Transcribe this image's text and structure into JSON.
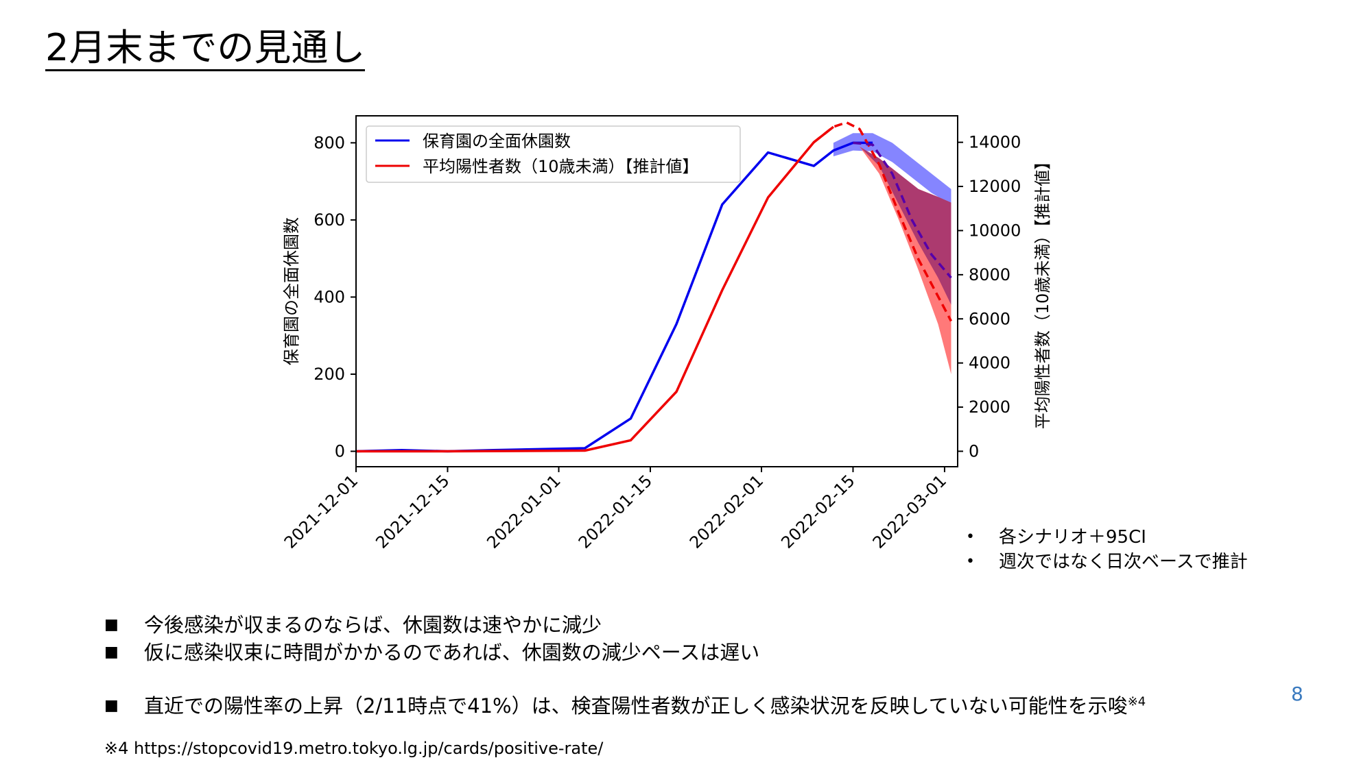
{
  "slide": {
    "title": "2月末までの見通し",
    "page_number": "8",
    "notes": [
      "各シナリオ＋95CI",
      "週次ではなく日次ベースで推計"
    ],
    "bullets": [
      {
        "text": "今後感染が収まるのならば、休園数は速やかに減少",
        "sup": ""
      },
      {
        "text": "仮に感染収束に時間がかかるのであれば、休園数の減少ペースは遅い",
        "sup": ""
      },
      {
        "text": "直近での陽性率の上昇（2/11時点で41%）は、検査陽性者数が正しく感染状況を反映していない可能性を示唆",
        "sup": "※4"
      }
    ],
    "footnote": "※4 https://stopcovid19.metro.tokyo.lg.jp/cards/positive-rate/"
  },
  "chart_data": {
    "type": "line",
    "x_range": [
      "2021-12-01",
      "2022-03-03"
    ],
    "x_ticks": [
      "2021-12-01",
      "2021-12-15",
      "2022-01-01",
      "2022-01-15",
      "2022-02-01",
      "2022-02-15",
      "2022-03-01"
    ],
    "y_left": {
      "label": "保育園の全面休園数",
      "range": [
        -40,
        870
      ],
      "ticks": [
        0,
        200,
        400,
        600,
        800
      ]
    },
    "y_right": {
      "label": "平均陽性者数（10歳未満）【推計値】",
      "range": [
        -700,
        15200
      ],
      "ticks": [
        0,
        2000,
        4000,
        6000,
        8000,
        10000,
        12000,
        14000
      ]
    },
    "legend_position": "top-left",
    "series": [
      {
        "name": "保育園の全面休園数",
        "axis": "left",
        "color": "#0000ee",
        "points": [
          [
            "2021-12-01",
            0
          ],
          [
            "2021-12-08",
            3
          ],
          [
            "2021-12-15",
            0
          ],
          [
            "2021-12-22",
            3
          ],
          [
            "2022-01-05",
            8
          ],
          [
            "2022-01-12",
            85
          ],
          [
            "2022-01-19",
            330
          ],
          [
            "2022-01-26",
            640
          ],
          [
            "2022-02-02",
            775
          ],
          [
            "2022-02-09",
            740
          ],
          [
            "2022-02-12",
            780
          ],
          [
            "2022-02-15",
            800
          ],
          [
            "2022-02-18",
            800
          ]
        ]
      },
      {
        "name": "平均陽性者数（10歳未満）【推計値】",
        "axis": "right",
        "color": "#ee0000",
        "points": [
          [
            "2021-12-01",
            0
          ],
          [
            "2021-12-15",
            0
          ],
          [
            "2022-01-05",
            30
          ],
          [
            "2022-01-12",
            500
          ],
          [
            "2022-01-19",
            2700
          ],
          [
            "2022-01-26",
            7300
          ],
          [
            "2022-02-02",
            11500
          ],
          [
            "2022-02-09",
            14000
          ],
          [
            "2022-02-12",
            14700
          ]
        ]
      },
      {
        "name": "",
        "axis": "right",
        "color": "#ee0000",
        "style": "dashed",
        "points": [
          [
            "2022-02-09",
            14000
          ],
          [
            "2022-02-12",
            14700
          ],
          [
            "2022-02-14",
            14900
          ],
          [
            "2022-02-16",
            14600
          ],
          [
            "2022-02-19",
            13000
          ],
          [
            "2022-02-22",
            10800
          ],
          [
            "2022-02-25",
            8700
          ],
          [
            "2022-03-02",
            5900
          ]
        ]
      },
      {
        "name": "",
        "axis": "left",
        "color": "#5500aa",
        "style": "dashed",
        "points": [
          [
            "2022-02-15",
            800
          ],
          [
            "2022-02-18",
            795
          ],
          [
            "2022-02-21",
            720
          ],
          [
            "2022-02-24",
            600
          ],
          [
            "2022-02-27",
            510
          ],
          [
            "2022-03-02",
            450
          ]
        ]
      }
    ],
    "bands": [
      {
        "axis": "left",
        "color": "#6666ff",
        "opacity": 0.8,
        "upper": [
          [
            "2022-02-12",
            800
          ],
          [
            "2022-02-15",
            825
          ],
          [
            "2022-02-18",
            825
          ],
          [
            "2022-02-21",
            800
          ],
          [
            "2022-02-24",
            760
          ],
          [
            "2022-02-27",
            720
          ],
          [
            "2022-03-02",
            680
          ]
        ],
        "lower": [
          [
            "2022-02-12",
            765
          ],
          [
            "2022-02-15",
            780
          ],
          [
            "2022-02-18",
            778
          ],
          [
            "2022-02-21",
            750
          ],
          [
            "2022-02-24",
            710
          ],
          [
            "2022-02-27",
            670
          ],
          [
            "2022-03-02",
            640
          ]
        ]
      },
      {
        "axis": "left",
        "color": "#ff6a6a",
        "opacity": 0.9,
        "upper": [
          [
            "2022-02-16",
            790
          ],
          [
            "2022-02-19",
            760
          ],
          [
            "2022-02-22",
            720
          ],
          [
            "2022-02-25",
            680
          ],
          [
            "2022-02-28",
            660
          ],
          [
            "2022-03-02",
            645
          ]
        ],
        "lower": [
          [
            "2022-02-16",
            790
          ],
          [
            "2022-02-19",
            720
          ],
          [
            "2022-02-22",
            600
          ],
          [
            "2022-02-25",
            470
          ],
          [
            "2022-02-28",
            330
          ],
          [
            "2022-03-02",
            200
          ]
        ]
      },
      {
        "axis": "left",
        "color": "#a3336e",
        "opacity": 0.9,
        "upper": [
          [
            "2022-02-16",
            790
          ],
          [
            "2022-02-19",
            760
          ],
          [
            "2022-02-22",
            720
          ],
          [
            "2022-02-25",
            680
          ],
          [
            "2022-02-28",
            660
          ],
          [
            "2022-03-02",
            645
          ]
        ],
        "lower": [
          [
            "2022-02-16",
            790
          ],
          [
            "2022-02-19",
            740
          ],
          [
            "2022-02-22",
            640
          ],
          [
            "2022-02-25",
            540
          ],
          [
            "2022-02-28",
            450
          ],
          [
            "2022-03-02",
            380
          ]
        ]
      }
    ]
  }
}
